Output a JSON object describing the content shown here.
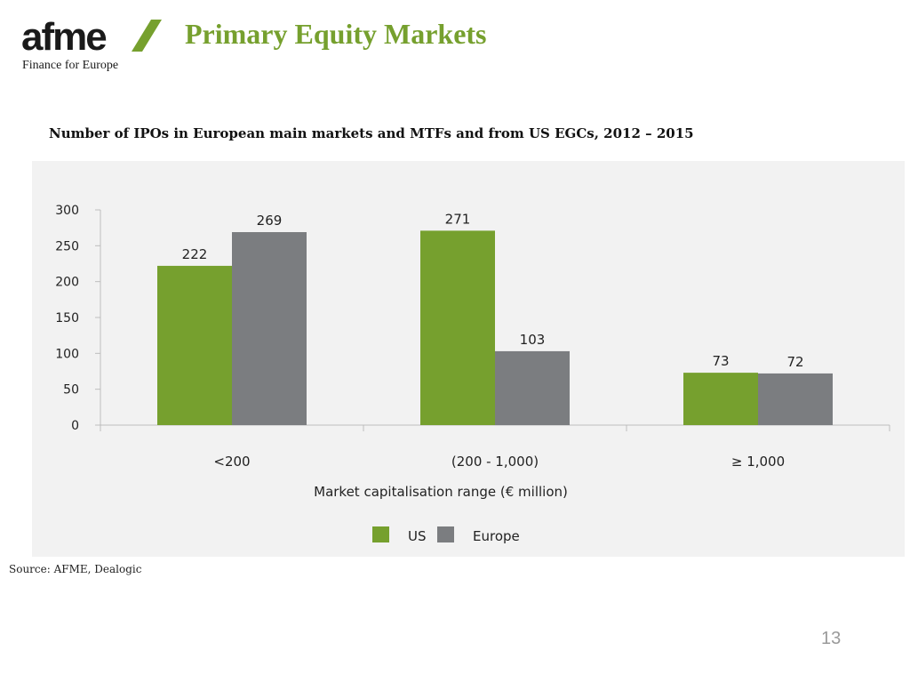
{
  "logo": {
    "wordmark": "afme",
    "tagline": "Finance for Europe",
    "colors": {
      "text": "#1a1a1a",
      "slash": "#76a02e"
    }
  },
  "header": {
    "title": "Primary Equity Markets"
  },
  "source": "Source: AFME, Dealogic",
  "page_number": "13",
  "colors": {
    "us": "#76a02e",
    "europe": "#7b7d80",
    "panel": "#f2f2f2",
    "title": "#76a02e"
  },
  "chart_data": {
    "type": "bar",
    "title": "Number of IPOs in European main markets and MTFs and from US EGCs, 2012 – 2015",
    "xlabel": "Market capitalisation range (€ million)",
    "ylabel": "",
    "categories": [
      "<200",
      "(200 - 1,000)",
      "≥ 1,000"
    ],
    "series": [
      {
        "name": "US",
        "values": [
          222,
          271,
          73
        ]
      },
      {
        "name": "Europe",
        "values": [
          269,
          103,
          72
        ]
      }
    ],
    "ylim": [
      0,
      300
    ],
    "yticks": [
      0,
      50,
      100,
      150,
      200,
      250,
      300
    ],
    "grid": false,
    "legend": "bottom-center",
    "data_labels": true
  }
}
